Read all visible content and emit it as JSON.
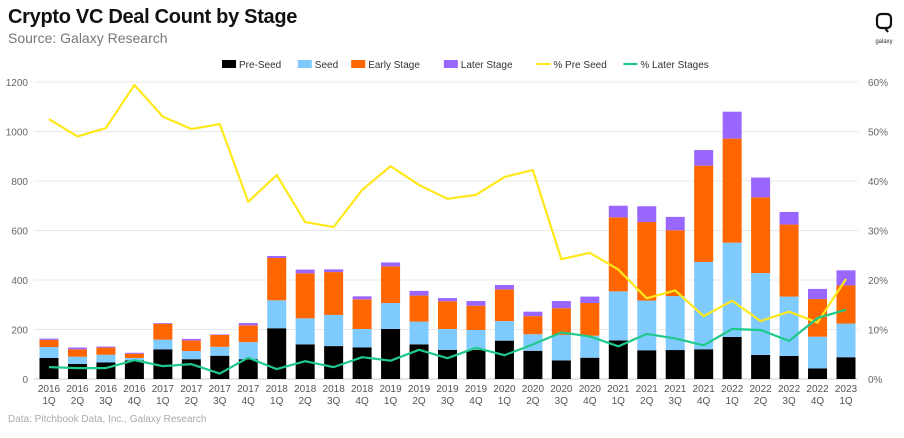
{
  "title": "Crypto VC Deal Count by Stage",
  "subtitle": "Source: Galaxy Research",
  "footer": "Data: Pitchbook Data, Inc., Galaxy Research",
  "logo_text": "galaxy",
  "chart_data": {
    "type": "bar",
    "stacked": true,
    "categories": [
      [
        "2016",
        "1Q"
      ],
      [
        "2016",
        "2Q"
      ],
      [
        "2016",
        "3Q"
      ],
      [
        "2016",
        "4Q"
      ],
      [
        "2017",
        "1Q"
      ],
      [
        "2017",
        "2Q"
      ],
      [
        "2017",
        "3Q"
      ],
      [
        "2017",
        "4Q"
      ],
      [
        "2018",
        "1Q"
      ],
      [
        "2018",
        "2Q"
      ],
      [
        "2018",
        "3Q"
      ],
      [
        "2018",
        "4Q"
      ],
      [
        "2019",
        "1Q"
      ],
      [
        "2019",
        "2Q"
      ],
      [
        "2019",
        "3Q"
      ],
      [
        "2019",
        "4Q"
      ],
      [
        "2020",
        "1Q"
      ],
      [
        "2020",
        "2Q"
      ],
      [
        "2020",
        "3Q"
      ],
      [
        "2020",
        "4Q"
      ],
      [
        "2021",
        "1Q"
      ],
      [
        "2021",
        "2Q"
      ],
      [
        "2021",
        "3Q"
      ],
      [
        "2021",
        "4Q"
      ],
      [
        "2022",
        "1Q"
      ],
      [
        "2022",
        "2Q"
      ],
      [
        "2022",
        "3Q"
      ],
      [
        "2022",
        "4Q"
      ],
      [
        "2023",
        "1Q"
      ]
    ],
    "series": [
      {
        "name": "Pre-Seed",
        "kind": "bar",
        "axis": "left",
        "color": "#000000",
        "values": [
          85,
          61,
          67,
          75,
          120,
          80,
          94,
          80,
          205,
          140,
          133,
          128,
          202,
          140,
          118,
          118,
          155,
          114,
          75,
          86,
          156,
          116,
          117,
          120,
          170,
          97,
          93,
          43,
          88
        ]
      },
      {
        "name": "Seed",
        "kind": "bar",
        "axis": "left",
        "color": "#7fcbff",
        "values": [
          44,
          29,
          31,
          10,
          39,
          33,
          36,
          69,
          113,
          105,
          126,
          74,
          105,
          92,
          84,
          80,
          79,
          67,
          103,
          89,
          198,
          201,
          218,
          353,
          381,
          331,
          240,
          128,
          136
        ]
      },
      {
        "name": "Early Stage",
        "kind": "bar",
        "axis": "left",
        "color": "#ff6600",
        "values": [
          29,
          30,
          29,
          17,
          64,
          43,
          48,
          68,
          171,
          182,
          173,
          120,
          148,
          105,
          112,
          98,
          128,
          73,
          108,
          132,
          299,
          317,
          266,
          389,
          420,
          306,
          291,
          152,
          154
        ]
      },
      {
        "name": "Later Stage",
        "kind": "bar",
        "axis": "left",
        "color": "#9966ff",
        "values": [
          5,
          7,
          4,
          4,
          3,
          6,
          2,
          9,
          8,
          15,
          11,
          12,
          16,
          19,
          13,
          19,
          18,
          18,
          29,
          26,
          47,
          64,
          54,
          63,
          109,
          80,
          51,
          41,
          61
        ]
      },
      {
        "name": "% Pre Seed",
        "kind": "line",
        "axis": "right",
        "color": "#ffe81a",
        "values": [
          52.5,
          49.0,
          50.7,
          59.4,
          53.0,
          50.5,
          51.5,
          35.8,
          41.2,
          31.7,
          30.7,
          38.2,
          43.0,
          39.2,
          36.4,
          37.2,
          40.8,
          42.2,
          24.2,
          25.5,
          22.1,
          16.3,
          17.9,
          12.7,
          15.8,
          11.7,
          13.6,
          11.4,
          20.2
        ]
      },
      {
        "name": "% Later Stages",
        "kind": "line",
        "axis": "right",
        "color": "#1fc98a",
        "values": [
          2.4,
          2.2,
          2.2,
          3.8,
          2.6,
          3.0,
          1.1,
          4.3,
          2.0,
          3.6,
          2.4,
          4.4,
          3.7,
          5.9,
          4.2,
          6.3,
          4.8,
          7.0,
          9.4,
          8.6,
          6.6,
          9.1,
          8.2,
          6.8,
          10.1,
          9.9,
          7.7,
          12.3,
          14.0
        ]
      }
    ],
    "ylim": [
      0,
      1200
    ],
    "yticks": [
      "0",
      "200",
      "400",
      "600",
      "800",
      "1000",
      "1200"
    ],
    "y2lim": [
      0,
      60
    ],
    "y2ticks": [
      "0%",
      "10%",
      "20%",
      "30%",
      "40%",
      "50%",
      "60%"
    ],
    "grid": true,
    "legend_position": "top"
  }
}
